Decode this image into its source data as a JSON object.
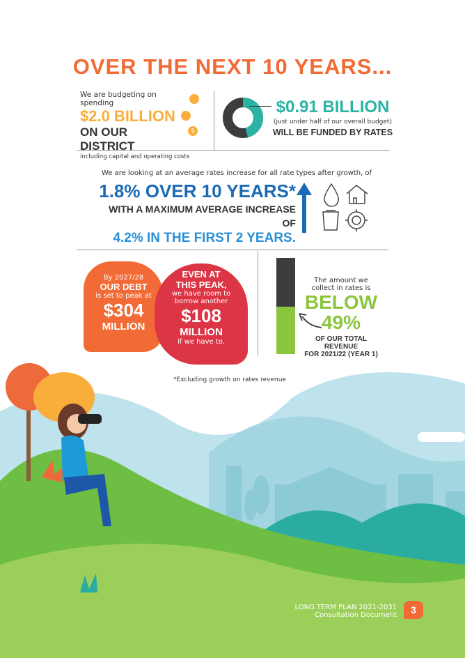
{
  "title": "OVER THE NEXT 10 YEARS...",
  "spending": {
    "intro": "We are budgeting on spending",
    "amount": "$2.0 BILLION",
    "target": "ON OUR DISTRICT",
    "note": "including capital and operating costs",
    "icon": "coins-icon"
  },
  "rates_funding": {
    "amount": "$0.91 BILLION",
    "note": "(just under half of our overall budget)",
    "label": "WILL BE FUNDED BY RATES",
    "share_percent": 46
  },
  "increase": {
    "intro": "We are looking at an average rates increase for all rate types after growth, of",
    "headline": "1.8% OVER 10 YEARS*",
    "sub": "WITH A MAXIMUM AVERAGE INCREASE OF",
    "second": "4.2% IN THE FIRST 2 YEARS.",
    "icons": [
      "water-drop-icon",
      "house-icon",
      "rubbish-bin-icon",
      "roundabout-icon"
    ]
  },
  "debt": {
    "l1": "By 2027/28",
    "l2": "OUR DEBT",
    "l3": "is set to peak at",
    "amount": "$304",
    "unit": "MILLION"
  },
  "borrow": {
    "l1": "EVEN AT",
    "l2": "THIS PEAK,",
    "l3": "we have room to",
    "l4": "borrow another",
    "amount": "$108",
    "unit": "MILLION",
    "l5": "if we have to."
  },
  "revenue": {
    "l1": "The amount we",
    "l2": "collect in rates is",
    "big1": "BELOW",
    "big2": "49%",
    "l3": "OF OUR TOTAL REVENUE",
    "l4": "FOR 2021/22 (YEAR 1)",
    "share_percent": 49
  },
  "footnote": "*Excluding growth on rates revenue",
  "footer": {
    "title": "LONG TERM PLAN 2021-2031",
    "subtitle": "Consultation Document",
    "page": "3"
  },
  "colors": {
    "orange": "#f26a35",
    "yellow": "#f9ae3b",
    "teal": "#2bb3a3",
    "blue": "#1b6ab5",
    "lightblue": "#2a8fd6",
    "red": "#dc3545",
    "green": "#8cc63f",
    "dark": "#3d3d3f"
  }
}
